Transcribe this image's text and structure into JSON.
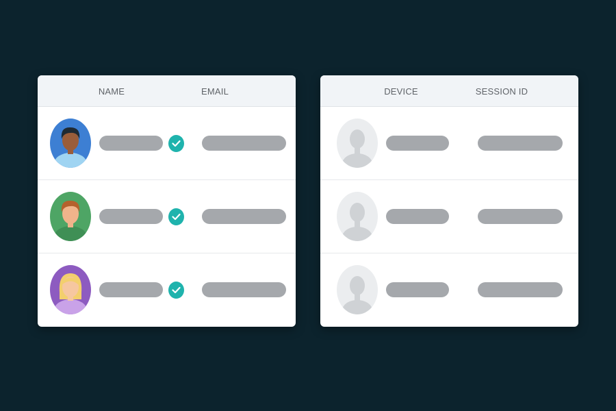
{
  "users_table": {
    "columns": [
      "NAME",
      "EMAIL"
    ],
    "rows": [
      {
        "avatar": "avatar-man-dark-hair",
        "avatar_color": "#3d7fd3",
        "verified": true
      },
      {
        "avatar": "avatar-man-red-hair",
        "avatar_color": "#4ea565",
        "verified": true
      },
      {
        "avatar": "avatar-woman-blonde",
        "avatar_color": "#8d5bc0",
        "verified": true
      }
    ]
  },
  "sessions_table": {
    "columns": [
      "DEVICE",
      "SESSION ID"
    ],
    "rows": [
      {
        "avatar": "placeholder-user-icon"
      },
      {
        "avatar": "placeholder-user-icon"
      },
      {
        "avatar": "placeholder-user-icon"
      }
    ]
  },
  "colors": {
    "background": "#0c232d",
    "check": "#1fb3ad",
    "placeholder_bar": "#a5a8ac"
  }
}
